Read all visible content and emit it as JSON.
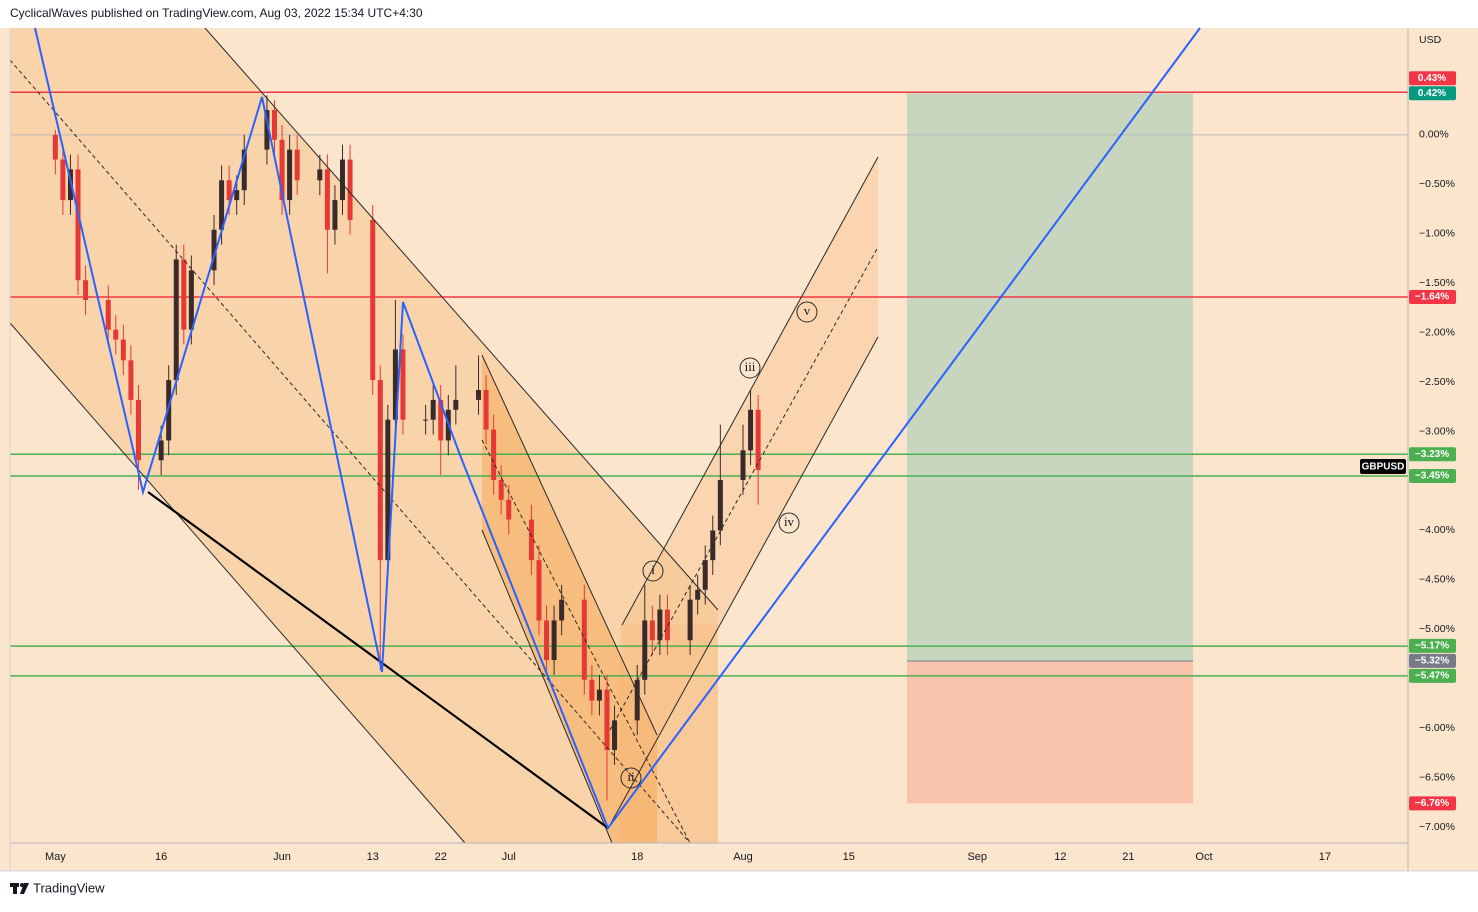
{
  "header": {
    "text": "CyclicalWaves published on TradingView.com, Aug 03, 2022 15:34 UTC+4:30"
  },
  "footer": {
    "brand": "TradingView"
  },
  "chart_data": {
    "type": "candlestick",
    "symbol": "GBPUSD",
    "currency": "USD",
    "x": [
      1,
      2,
      3,
      4,
      5,
      8,
      9,
      10,
      11,
      12,
      15,
      16,
      17,
      18,
      19,
      22,
      23,
      24,
      25,
      26,
      29,
      30,
      31,
      32,
      33,
      36,
      37,
      38,
      39,
      40,
      43,
      44,
      45,
      46,
      47,
      50,
      51,
      52,
      53,
      54,
      57,
      58,
      59,
      60,
      61,
      64,
      65,
      66,
      67,
      68,
      71,
      72,
      73,
      74,
      75,
      78,
      79,
      80,
      81,
      82,
      85,
      86,
      87,
      88,
      89,
      92,
      93,
      94
    ],
    "open": [
      0.0,
      -0.25,
      -0.66,
      -0.35,
      -1.47,
      -1.67,
      -1.97,
      -2.07,
      -2.28,
      -2.68,
      -3.29,
      -3.09,
      -2.48,
      -1.26,
      -1.97,
      -1.37,
      -0.96,
      -0.46,
      -0.66,
      -0.56,
      -0.15,
      0.25,
      -0.05,
      -0.66,
      -0.15,
      -0.46,
      -0.35,
      -0.96,
      -0.66,
      -0.25,
      -0.86,
      -2.48,
      -4.3,
      -2.88,
      -2.17,
      -2.88,
      -2.88,
      -2.68,
      -3.09,
      -2.78,
      -2.68,
      -2.58,
      -2.98,
      -3.49,
      -3.69,
      -3.89,
      -4.3,
      -4.91,
      -5.31,
      -4.91,
      -4.7,
      -5.51,
      -5.72,
      -5.61,
      -6.22,
      -5.92,
      -5.51,
      -4.91,
      -5.11,
      -4.8,
      -5.11,
      -4.7,
      -4.6,
      -4.3,
      -4.0,
      -3.49,
      -3.19,
      -2.78
    ],
    "high": [
      0.05,
      -0.1,
      -0.2,
      -0.2,
      -1.32,
      -1.52,
      -1.82,
      -1.92,
      -2.13,
      -2.53,
      -2.94,
      -2.33,
      -1.11,
      -1.11,
      -1.22,
      -0.81,
      -0.31,
      -0.31,
      -0.41,
      0.0,
      0.4,
      0.35,
      0.1,
      0.0,
      0.0,
      -0.2,
      -0.2,
      -0.51,
      -0.1,
      -0.1,
      -0.71,
      -2.33,
      -2.73,
      -1.67,
      -2.02,
      -2.73,
      -2.53,
      -2.53,
      -2.63,
      -2.33,
      -2.23,
      -2.43,
      -2.83,
      -3.34,
      -3.54,
      -3.74,
      -4.15,
      -4.76,
      -4.76,
      -4.55,
      -4.55,
      -5.36,
      -5.46,
      -5.46,
      -5.77,
      -5.36,
      -4.55,
      -4.76,
      -4.65,
      -4.65,
      -4.55,
      -4.45,
      -4.15,
      -3.85,
      -2.93,
      -2.93,
      -2.58,
      -2.63
    ],
    "low": [
      -0.4,
      -0.81,
      -0.81,
      -1.62,
      -1.82,
      -2.12,
      -2.22,
      -2.43,
      -2.83,
      -3.59,
      -3.44,
      -3.24,
      -2.63,
      -2.12,
      -2.12,
      -1.52,
      -1.11,
      -0.81,
      -0.81,
      -0.71,
      -0.3,
      -0.2,
      -0.81,
      -0.81,
      -0.61,
      -0.61,
      -1.4,
      -1.11,
      -0.81,
      -1.01,
      -2.63,
      -5.41,
      -4.45,
      -3.03,
      -3.03,
      -3.03,
      -3.03,
      -3.44,
      -3.24,
      -2.93,
      -2.83,
      -3.13,
      -3.64,
      -3.84,
      -4.04,
      -4.45,
      -5.06,
      -5.46,
      -5.46,
      -5.06,
      -5.66,
      -5.87,
      -5.87,
      -6.73,
      -6.37,
      -6.07,
      -5.66,
      -5.26,
      -5.26,
      -5.26,
      -5.26,
      -4.85,
      -4.75,
      -4.45,
      -4.15,
      -3.64,
      -3.34,
      -3.74
    ],
    "close": [
      -0.25,
      -0.66,
      -0.35,
      -1.47,
      -1.67,
      -1.97,
      -2.07,
      -2.28,
      -2.68,
      -3.29,
      -3.09,
      -2.48,
      -1.26,
      -1.97,
      -1.37,
      -0.96,
      -0.46,
      -0.66,
      -0.56,
      -0.15,
      0.25,
      -0.05,
      -0.66,
      -0.15,
      -0.46,
      -0.35,
      -0.96,
      -0.66,
      -0.25,
      -0.86,
      -2.48,
      -4.3,
      -2.88,
      -2.17,
      -2.88,
      -2.88,
      -2.68,
      -3.09,
      -2.78,
      -2.68,
      -2.58,
      -2.98,
      -3.49,
      -3.69,
      -3.89,
      -4.3,
      -4.91,
      -5.31,
      -4.91,
      -4.7,
      -5.51,
      -5.72,
      -5.61,
      -6.22,
      -5.92,
      -5.51,
      -4.91,
      -5.11,
      -4.8,
      -5.11,
      -4.7,
      -4.6,
      -4.3,
      -4.0,
      -3.49,
      -3.19,
      -2.78,
      -3.39
    ],
    "up_color": "#3a2a2a",
    "down_color": "#e53935",
    "xlim": [
      -5,
      180
    ],
    "xticks": [
      {
        "value": 1,
        "label": "May"
      },
      {
        "value": 15,
        "label": "16"
      },
      {
        "value": 31,
        "label": "Jun"
      },
      {
        "value": 43,
        "label": "13"
      },
      {
        "value": 52,
        "label": "22"
      },
      {
        "value": 61,
        "label": "Jul"
      },
      {
        "value": 78,
        "label": "18"
      },
      {
        "value": 92,
        "label": "Aug"
      },
      {
        "value": 106,
        "label": "15"
      },
      {
        "value": 123,
        "label": "Sep"
      },
      {
        "value": 134,
        "label": "12"
      },
      {
        "value": 143,
        "label": "21"
      },
      {
        "value": 153,
        "label": "Oct"
      },
      {
        "value": 169,
        "label": "17"
      }
    ],
    "ylim": [
      -7.16,
      1.08
    ],
    "yticks": [
      {
        "value": 0,
        "label": "0.00%"
      },
      {
        "value": -0.5,
        "label": "−0.50%"
      },
      {
        "value": -1,
        "label": "−1.00%"
      },
      {
        "value": -1.5,
        "label": "−1.50%"
      },
      {
        "value": -2,
        "label": "−2.00%"
      },
      {
        "value": -2.5,
        "label": "−2.50%"
      },
      {
        "value": -3,
        "label": "−3.00%"
      },
      {
        "value": -4,
        "label": "−4.00%"
      },
      {
        "value": -4.5,
        "label": "−4.50%"
      },
      {
        "value": -5,
        "label": "−5.00%"
      },
      {
        "value": -6,
        "label": "−6.00%"
      },
      {
        "value": -6.5,
        "label": "−6.50%"
      },
      {
        "value": -7,
        "label": "−7.00%"
      }
    ],
    "grid": false,
    "baseline": 0,
    "levels": [
      {
        "value": 0.43,
        "label": "0.43%",
        "color": "#f23645"
      },
      {
        "value": -1.64,
        "label": "−1.64%",
        "color": "#f23645"
      },
      {
        "value": -3.23,
        "label": "−3.23%",
        "color": "#4caf50"
      },
      {
        "value": -3.45,
        "label": "−3.45%",
        "color": "#4caf50"
      },
      {
        "value": -5.17,
        "label": "−5.17%",
        "color": "#4caf50"
      },
      {
        "value": -5.47,
        "label": "−5.47%",
        "color": "#4caf50"
      }
    ],
    "position": {
      "target": {
        "value": 0.42,
        "label": "0.42%",
        "color": "#089981"
      },
      "entry": {
        "value": -5.32,
        "label": "−5.32%",
        "color": "#787b86"
      },
      "stop": {
        "value": -6.76,
        "label": "−6.76%",
        "color": "#f23645"
      },
      "profit_color": "#c8d6c0",
      "loss_color": "#f8c3ab"
    },
    "wave_labels": [
      "i",
      "ii",
      "iii",
      "iv",
      "v"
    ]
  }
}
